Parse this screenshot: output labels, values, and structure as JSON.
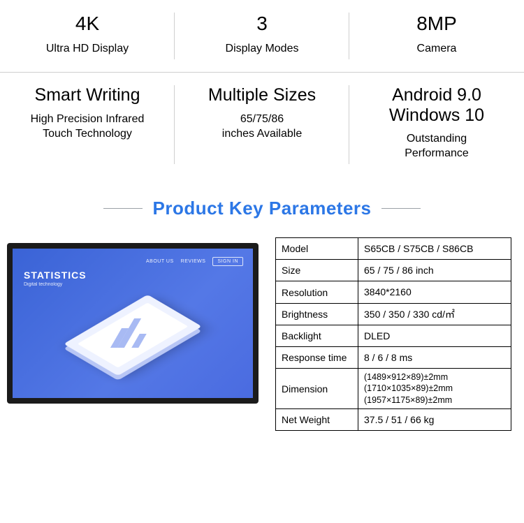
{
  "features": {
    "row1": [
      {
        "title": "4K",
        "sub": "Ultra HD Display"
      },
      {
        "title": "3",
        "sub": "Display Modes"
      },
      {
        "title": "8MP",
        "sub": "Camera"
      }
    ],
    "row2": [
      {
        "title": "Smart Writing",
        "sub": "High Precision Infrared\nTouch Technology"
      },
      {
        "title": "Multiple Sizes",
        "sub": "65/75/86\ninches Available"
      },
      {
        "title": "Android 9.0\nWindows 10",
        "sub": "Outstanding\nPerformance"
      }
    ]
  },
  "section_title": "Product Key Parameters",
  "monitor": {
    "stats_title": "STATISTICS",
    "stats_sub": "Digital technology",
    "nav_about": "ABOUT US",
    "nav_reviews": "REVIEWS",
    "nav_signin": "SIGN IN"
  },
  "specs": [
    {
      "key": "Model",
      "val": "S65CB / S75CB / S86CB"
    },
    {
      "key": "Size",
      "val": "65 / 75 / 86 inch"
    },
    {
      "key": "Resolution",
      "val": "3840*2160"
    },
    {
      "key": "Brightness",
      "val": "350 / 350 / 330 cd/㎡"
    },
    {
      "key": "Backlight",
      "val": "DLED"
    },
    {
      "key": "Response time",
      "val": "8 / 6 / 8 ms"
    },
    {
      "key": "Dimension",
      "val": "(1489×912×89)±2mm\n(1710×1035×89)±2mm\n(1957×1175×89)±2mm",
      "dim": true
    },
    {
      "key": "Net Weight",
      "val": "37.5 / 51 / 66 kg"
    }
  ],
  "colors": {
    "divider": "#cfcfcf",
    "accent": "#2c77e6",
    "table_border": "#000000",
    "screen_grad_a": "#3a63d6",
    "screen_grad_b": "#5478e6"
  }
}
